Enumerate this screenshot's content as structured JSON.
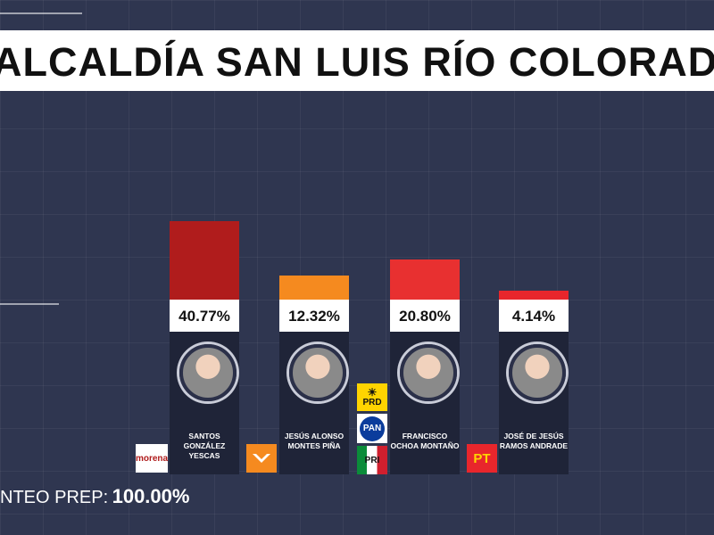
{
  "title": "ALCALDÍA SAN LUIS RÍO COLORADO",
  "footer": {
    "label": "NTEO PREP:",
    "value": "100.00%"
  },
  "chart_data": {
    "type": "bar",
    "title": "ALCALDÍA SAN LUIS RÍO COLORADO",
    "ylim": [
      0,
      100
    ],
    "categories": [
      "SANTOS GONZÁLEZ YESCAS",
      "JESÚS ALONSO MONTES PIÑA",
      "FRANCISCO OCHOA MONTAÑO",
      "JOSÉ DE JESÚS RAMOS ANDRADE"
    ],
    "values": [
      40.77,
      12.32,
      20.8,
      4.14
    ],
    "labels": [
      "40.77%",
      "12.32%",
      "20.80%",
      "4.14%"
    ],
    "colors": [
      "#b01c1c",
      "#f58a1f",
      "#e83030",
      "#e8262c"
    ]
  },
  "candidates": [
    {
      "name": "SANTOS GONZÁLEZ YESCAS",
      "pct": "40.77%",
      "value": 40.77,
      "color": "#b01c1c",
      "party_icons": [
        "morena-logo"
      ],
      "party_texts": [
        "morena"
      ]
    },
    {
      "name": "JESÚS ALONSO MONTES PIÑA",
      "pct": "12.32%",
      "value": 12.32,
      "color": "#f58a1f",
      "party_icons": [
        "movimiento-ciudadano-logo"
      ],
      "party_texts": []
    },
    {
      "name": "FRANCISCO OCHOA MONTAÑO",
      "pct": "20.80%",
      "value": 20.8,
      "color": "#e83030",
      "party_icons": [
        "prd-logo",
        "pan-logo",
        "pri-logo"
      ],
      "party_texts": [
        "PRD",
        "PAN",
        "PRI"
      ]
    },
    {
      "name": "JOSÉ DE JESÚS RAMOS ANDRADE",
      "pct": "4.14%",
      "value": 4.14,
      "color": "#e8262c",
      "party_icons": [
        "pt-logo"
      ],
      "party_texts": [
        "PT"
      ]
    }
  ]
}
